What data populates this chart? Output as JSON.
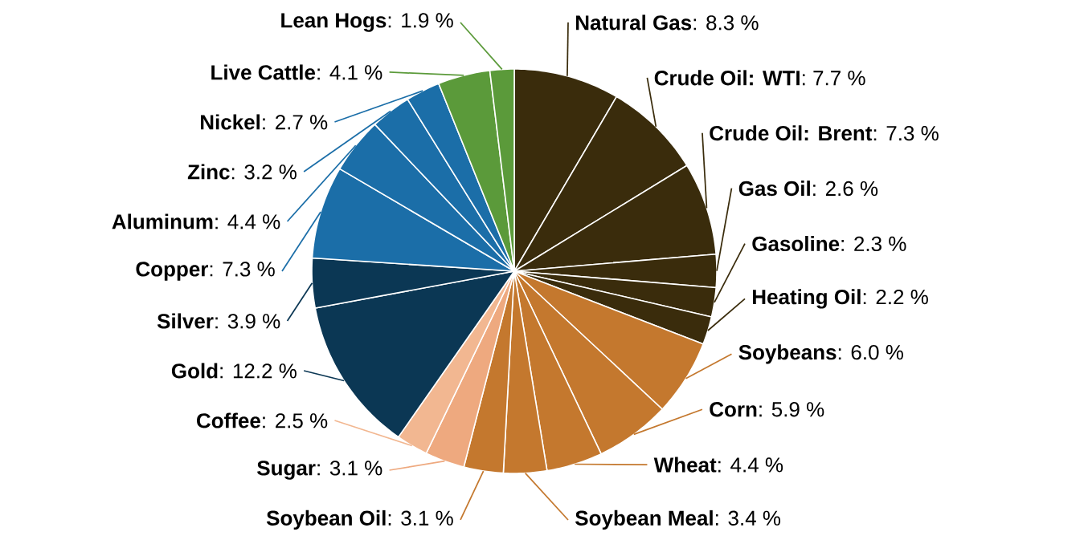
{
  "chart_data": {
    "type": "pie",
    "categories": [
      "Natural Gas",
      "Crude Oil: WTI",
      "Crude Oil: Brent",
      "Gas Oil",
      "Gasoline",
      "Heating Oil",
      "Soybeans",
      "Corn",
      "Wheat",
      "Soybean Meal",
      "Soybean Oil",
      "Sugar",
      "Coffee",
      "Gold",
      "Silver",
      "Copper",
      "Aluminum",
      "Zinc",
      "Nickel",
      "Live Cattle",
      "Lean Hogs"
    ],
    "values": [
      8.3,
      7.7,
      7.3,
      2.6,
      2.3,
      2.2,
      6.0,
      5.9,
      4.4,
      3.4,
      3.1,
      3.1,
      2.5,
      12.2,
      3.9,
      7.3,
      4.4,
      3.2,
      2.7,
      4.1,
      1.9
    ],
    "value_labels": [
      ": 8.3 %",
      ": 7.7 %",
      ": 7.3 %",
      ": 2.6 %",
      ": 2.3 %",
      ": 2.2 %",
      ": 6.0 %",
      ": 5.9 %",
      ": 4.4 %",
      ": 3.4 %",
      ": 3.1 %",
      ": 3.1 %",
      ": 2.5 %",
      ": 12.2 %",
      ": 3.9 %",
      ": 7.3 %",
      ": 4.4 %",
      ": 3.2 %",
      ": 2.7 %",
      ": 4.1 %",
      ": 1.9 %"
    ],
    "colors": [
      "#3a2c0c",
      "#3a2c0c",
      "#3a2c0c",
      "#3a2c0c",
      "#3a2c0c",
      "#3a2c0c",
      "#c4782e",
      "#c4782e",
      "#c4782e",
      "#c4782e",
      "#c4782e",
      "#eea97f",
      "#f2b791",
      "#0b3754",
      "#0b3754",
      "#1b6ea8",
      "#1b6ea8",
      "#1b6ea8",
      "#1b6ea8",
      "#5b9a3a",
      "#5b9a3a"
    ]
  }
}
